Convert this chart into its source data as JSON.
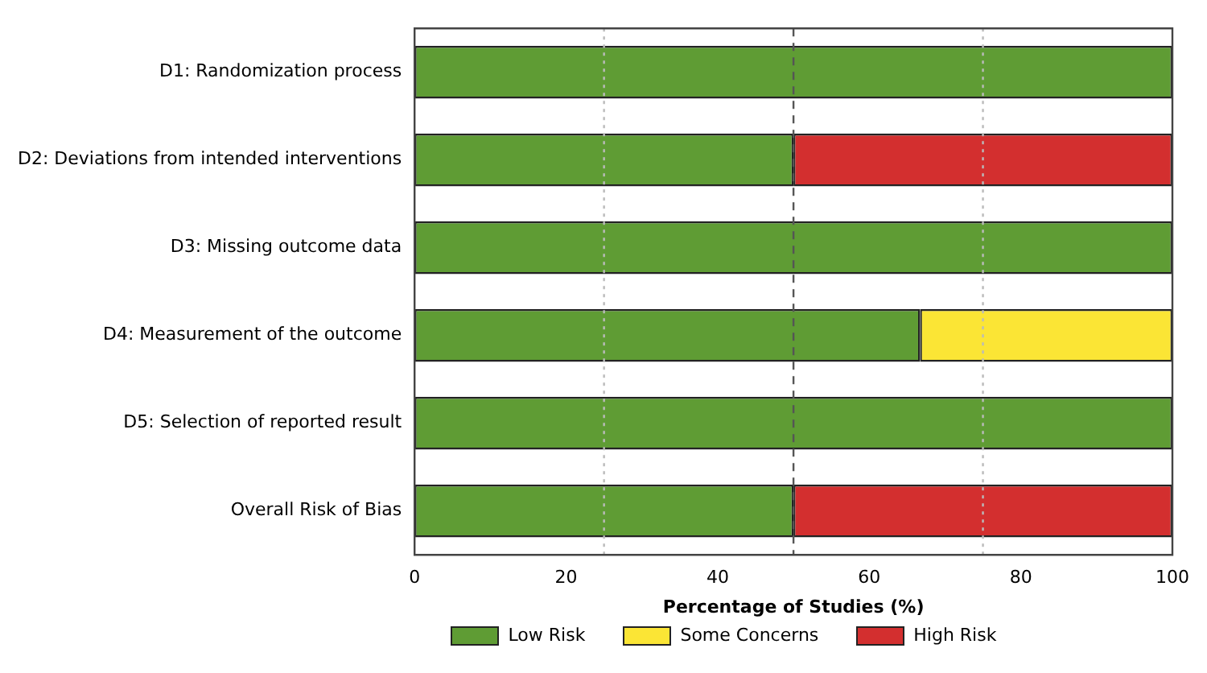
{
  "chart_data": {
    "type": "bar",
    "orientation": "horizontal",
    "stacked": true,
    "categories": [
      "D1: Randomization process",
      "D2: Deviations from intended interventions",
      "D3: Missing outcome data",
      "D4: Measurement of the outcome",
      "D5: Selection of reported result",
      "Overall Risk of Bias"
    ],
    "series": [
      {
        "name": "Low Risk",
        "color": "#5f9c34",
        "values": [
          100,
          50,
          100,
          66.7,
          100,
          50
        ]
      },
      {
        "name": "Some Concerns",
        "color": "#fbe535",
        "values": [
          0,
          0,
          0,
          33.3,
          0,
          0
        ]
      },
      {
        "name": "High Risk",
        "color": "#d32f2f",
        "values": [
          0,
          50,
          0,
          0,
          0,
          50
        ]
      }
    ],
    "xlabel": "Percentage of Studies (%)",
    "xlim": [
      0,
      100
    ],
    "xticks": [
      0,
      20,
      40,
      60,
      80,
      100
    ],
    "ref_lines": [
      {
        "axis": "x",
        "value": 25,
        "line_style": "dotted",
        "color": "#bbbbbb"
      },
      {
        "axis": "x",
        "value": 50,
        "line_style": "dashed",
        "color": "#555555"
      },
      {
        "axis": "x",
        "value": 75,
        "line_style": "dotted",
        "color": "#bbbbbb"
      }
    ],
    "grid": false,
    "legend": "bottom"
  }
}
